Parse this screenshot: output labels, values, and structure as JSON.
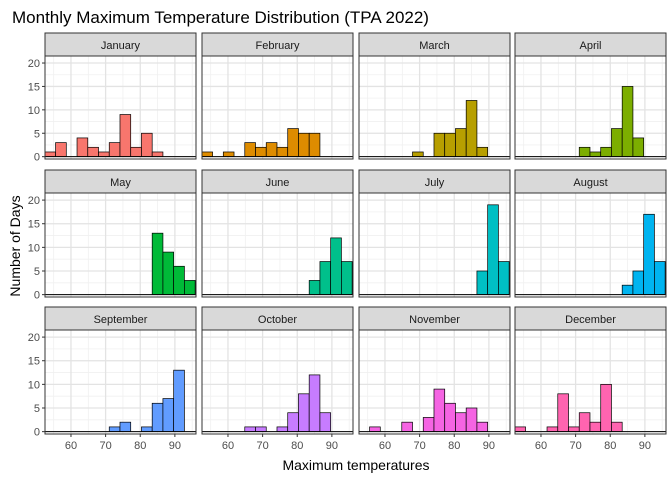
{
  "chart_data": {
    "type": "bar",
    "subtype": "faceted-histogram",
    "title": "Monthly Maximum Temperature Distribution (TPA 2022)",
    "xlabel": "Maximum temperatures",
    "ylabel": "Number of Days",
    "xlim": [
      52.5,
      96.1
    ],
    "ylim": [
      -0.5,
      21.5
    ],
    "x_ticks": [
      60,
      70,
      80,
      90
    ],
    "y_ticks": [
      0,
      5,
      10,
      15,
      20
    ],
    "bin_width": 3.1,
    "grid": true,
    "legend": "none",
    "facets": [
      {
        "label": "January",
        "color": "#F8766D",
        "bins": [
          [
            54.0,
            1
          ],
          [
            57.1,
            3
          ],
          [
            63.3,
            4
          ],
          [
            66.4,
            2
          ],
          [
            69.5,
            1
          ],
          [
            72.6,
            3
          ],
          [
            75.7,
            9
          ],
          [
            78.8,
            2
          ],
          [
            81.9,
            5
          ],
          [
            85.0,
            1
          ]
        ]
      },
      {
        "label": "February",
        "color": "#DE8C00",
        "bins": [
          [
            54.0,
            1
          ],
          [
            60.2,
            1
          ],
          [
            66.4,
            3
          ],
          [
            69.5,
            2
          ],
          [
            72.6,
            3
          ],
          [
            75.7,
            2
          ],
          [
            78.8,
            6
          ],
          [
            81.9,
            5
          ],
          [
            85.0,
            5
          ]
        ]
      },
      {
        "label": "March",
        "color": "#B79F00",
        "bins": [
          [
            69.5,
            1
          ],
          [
            75.7,
            5
          ],
          [
            78.8,
            5
          ],
          [
            81.9,
            6
          ],
          [
            85.0,
            12
          ],
          [
            88.1,
            2
          ]
        ]
      },
      {
        "label": "April",
        "color": "#7CAE00",
        "bins": [
          [
            72.6,
            2
          ],
          [
            75.7,
            1
          ],
          [
            78.8,
            2
          ],
          [
            81.9,
            6
          ],
          [
            85.0,
            15
          ],
          [
            88.1,
            4
          ]
        ]
      },
      {
        "label": "May",
        "color": "#00BA38",
        "bins": [
          [
            85.0,
            13
          ],
          [
            88.1,
            9
          ],
          [
            91.2,
            6
          ],
          [
            94.3,
            3
          ]
        ]
      },
      {
        "label": "June",
        "color": "#00C08B",
        "bins": [
          [
            85.0,
            3
          ],
          [
            88.1,
            7
          ],
          [
            91.2,
            12
          ],
          [
            94.3,
            7
          ]
        ]
      },
      {
        "label": "July",
        "color": "#00BFC4",
        "bins": [
          [
            88.1,
            5
          ],
          [
            91.2,
            19
          ],
          [
            94.3,
            7
          ]
        ]
      },
      {
        "label": "August",
        "color": "#00B4F0",
        "bins": [
          [
            85.0,
            2
          ],
          [
            88.1,
            5
          ],
          [
            91.2,
            17
          ],
          [
            94.3,
            7
          ]
        ]
      },
      {
        "label": "September",
        "color": "#619CFF",
        "bins": [
          [
            72.6,
            1
          ],
          [
            75.7,
            2
          ],
          [
            81.9,
            1
          ],
          [
            85.0,
            6
          ],
          [
            88.1,
            7
          ],
          [
            91.2,
            13
          ]
        ]
      },
      {
        "label": "October",
        "color": "#C77CFF",
        "bins": [
          [
            66.4,
            1
          ],
          [
            69.5,
            1
          ],
          [
            75.7,
            1
          ],
          [
            78.8,
            4
          ],
          [
            81.9,
            8
          ],
          [
            85.0,
            12
          ],
          [
            88.1,
            4
          ]
        ]
      },
      {
        "label": "November",
        "color": "#F564E3",
        "bins": [
          [
            57.1,
            1
          ],
          [
            66.4,
            2
          ],
          [
            72.6,
            3
          ],
          [
            75.7,
            9
          ],
          [
            78.8,
            6
          ],
          [
            81.9,
            4
          ],
          [
            85.0,
            5
          ],
          [
            88.1,
            2
          ]
        ]
      },
      {
        "label": "December",
        "color": "#FF64B0",
        "bins": [
          [
            54.0,
            1
          ],
          [
            63.3,
            1
          ],
          [
            66.4,
            8
          ],
          [
            69.5,
            1
          ],
          [
            72.6,
            4
          ],
          [
            75.7,
            2
          ],
          [
            78.8,
            10
          ],
          [
            81.9,
            2
          ]
        ]
      }
    ]
  }
}
